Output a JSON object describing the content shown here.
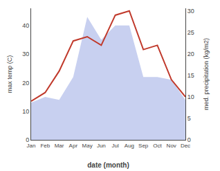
{
  "chart_data": {
    "type": "line",
    "categories": [
      "Jan",
      "Feb",
      "Mar",
      "Apr",
      "May",
      "Jun",
      "Jul",
      "Aug",
      "Sep",
      "Oct",
      "Nov",
      "Dec"
    ],
    "series": [
      {
        "type": "area",
        "color": "#c8d0f0",
        "values": [
          13,
          15,
          14,
          22,
          43,
          35,
          40,
          40,
          22,
          22,
          21,
          14
        ]
      },
      {
        "type": "line",
        "color": "#c0392b",
        "axis": "y2",
        "values": [
          9,
          11,
          16,
          23,
          24,
          22,
          29,
          30,
          21,
          22,
          14,
          10
        ]
      }
    ],
    "xlabel": "date (month)",
    "ylabel": "max temp (C)",
    "y2label": "med. precipitation (kg/m2)",
    "ylim": [
      0,
      46
    ],
    "yticks": [
      0,
      10,
      20,
      30,
      40
    ],
    "y2lim": [
      0,
      30.6
    ],
    "y2ticks": [
      0,
      5,
      10,
      15,
      20,
      25,
      30
    ],
    "grid": false
  }
}
